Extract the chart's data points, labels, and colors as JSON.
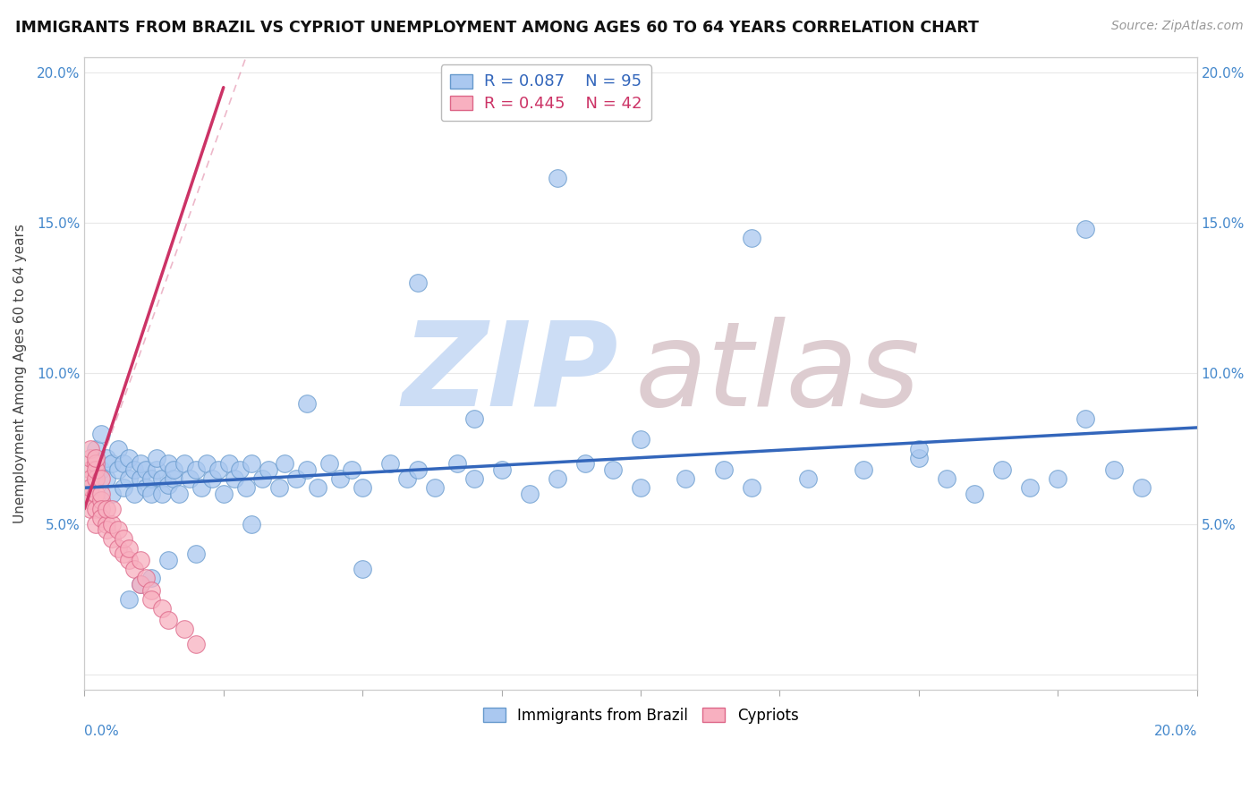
{
  "title": "IMMIGRANTS FROM BRAZIL VS CYPRIOT UNEMPLOYMENT AMONG AGES 60 TO 64 YEARS CORRELATION CHART",
  "source": "Source: ZipAtlas.com",
  "ylabel": "Unemployment Among Ages 60 to 64 years",
  "xlim": [
    0,
    0.2
  ],
  "ylim": [
    -0.005,
    0.205
  ],
  "series1_label": "Immigrants from Brazil",
  "series1_color": "#aac8f0",
  "series1_edge_color": "#6699cc",
  "series1_R": 0.087,
  "series1_N": 95,
  "series1_line_color": "#3366bb",
  "series1_trend_y0": 0.062,
  "series1_trend_y1": 0.082,
  "series2_label": "Cypriots",
  "series2_color": "#f8b0c0",
  "series2_edge_color": "#dd6688",
  "series2_R": 0.445,
  "series2_N": 42,
  "series2_line_color": "#cc3366",
  "series2_trend_x0": 0.0,
  "series2_trend_x1": 0.025,
  "series2_trend_y0": 0.055,
  "series2_trend_y1": 0.195,
  "watermark_zip_color": "#ccddf5",
  "watermark_atlas_color": "#ddccd0",
  "background_color": "#ffffff",
  "grid_color": "#e8e8e8",
  "title_fontsize": 12.5,
  "tick_color": "#4488cc",
  "blue_x": [
    0.002,
    0.003,
    0.003,
    0.004,
    0.004,
    0.005,
    0.005,
    0.006,
    0.006,
    0.007,
    0.007,
    0.008,
    0.008,
    0.009,
    0.009,
    0.01,
    0.01,
    0.011,
    0.011,
    0.012,
    0.012,
    0.013,
    0.013,
    0.014,
    0.014,
    0.015,
    0.015,
    0.016,
    0.016,
    0.017,
    0.018,
    0.019,
    0.02,
    0.021,
    0.022,
    0.023,
    0.024,
    0.025,
    0.026,
    0.027,
    0.028,
    0.029,
    0.03,
    0.032,
    0.033,
    0.035,
    0.036,
    0.038,
    0.04,
    0.042,
    0.044,
    0.046,
    0.048,
    0.05,
    0.055,
    0.058,
    0.06,
    0.063,
    0.067,
    0.07,
    0.075,
    0.08,
    0.085,
    0.09,
    0.095,
    0.1,
    0.108,
    0.115,
    0.12,
    0.13,
    0.14,
    0.15,
    0.155,
    0.16,
    0.165,
    0.17,
    0.175,
    0.18,
    0.185,
    0.19,
    0.085,
    0.06,
    0.04,
    0.12,
    0.15,
    0.18,
    0.1,
    0.07,
    0.05,
    0.03,
    0.02,
    0.015,
    0.012,
    0.01,
    0.008
  ],
  "blue_y": [
    0.075,
    0.068,
    0.08,
    0.065,
    0.072,
    0.06,
    0.07,
    0.068,
    0.075,
    0.062,
    0.07,
    0.065,
    0.072,
    0.06,
    0.068,
    0.065,
    0.07,
    0.062,
    0.068,
    0.065,
    0.06,
    0.068,
    0.072,
    0.065,
    0.06,
    0.07,
    0.063,
    0.065,
    0.068,
    0.06,
    0.07,
    0.065,
    0.068,
    0.062,
    0.07,
    0.065,
    0.068,
    0.06,
    0.07,
    0.065,
    0.068,
    0.062,
    0.07,
    0.065,
    0.068,
    0.062,
    0.07,
    0.065,
    0.068,
    0.062,
    0.07,
    0.065,
    0.068,
    0.062,
    0.07,
    0.065,
    0.068,
    0.062,
    0.07,
    0.065,
    0.068,
    0.06,
    0.065,
    0.07,
    0.068,
    0.062,
    0.065,
    0.068,
    0.062,
    0.065,
    0.068,
    0.072,
    0.065,
    0.06,
    0.068,
    0.062,
    0.065,
    0.085,
    0.068,
    0.062,
    0.165,
    0.13,
    0.09,
    0.145,
    0.075,
    0.148,
    0.078,
    0.085,
    0.035,
    0.05,
    0.04,
    0.038,
    0.032,
    0.03,
    0.025
  ],
  "pink_x": [
    0.001,
    0.001,
    0.001,
    0.001,
    0.001,
    0.001,
    0.001,
    0.001,
    0.002,
    0.002,
    0.002,
    0.002,
    0.002,
    0.002,
    0.002,
    0.003,
    0.003,
    0.003,
    0.003,
    0.003,
    0.004,
    0.004,
    0.004,
    0.005,
    0.005,
    0.005,
    0.006,
    0.006,
    0.007,
    0.007,
    0.008,
    0.008,
    0.009,
    0.01,
    0.01,
    0.011,
    0.012,
    0.012,
    0.014,
    0.015,
    0.018,
    0.02
  ],
  "pink_y": [
    0.068,
    0.072,
    0.075,
    0.06,
    0.065,
    0.058,
    0.062,
    0.055,
    0.07,
    0.065,
    0.06,
    0.068,
    0.055,
    0.072,
    0.05,
    0.065,
    0.058,
    0.06,
    0.055,
    0.052,
    0.05,
    0.055,
    0.048,
    0.045,
    0.05,
    0.055,
    0.042,
    0.048,
    0.04,
    0.045,
    0.038,
    0.042,
    0.035,
    0.038,
    0.03,
    0.032,
    0.028,
    0.025,
    0.022,
    0.018,
    0.015,
    0.01
  ]
}
